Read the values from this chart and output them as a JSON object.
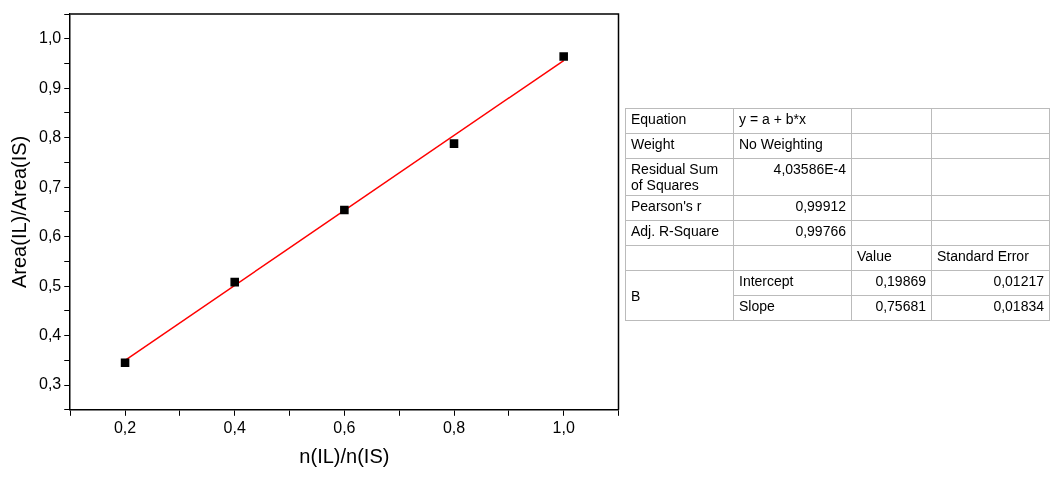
{
  "chart_data": {
    "type": "scatter",
    "xlabel": "n(IL)/n(IS)",
    "ylabel": "Area(IL)/Area(IS)",
    "xlim": [
      0.1,
      1.1
    ],
    "ylim": [
      0.25,
      1.05
    ],
    "xticks": [
      {
        "value": 0.1,
        "label": null
      },
      {
        "value": 0.2,
        "label": "0,2"
      },
      {
        "value": 0.3,
        "label": null
      },
      {
        "value": 0.4,
        "label": "0,4"
      },
      {
        "value": 0.5,
        "label": null
      },
      {
        "value": 0.6,
        "label": "0,6"
      },
      {
        "value": 0.7,
        "label": null
      },
      {
        "value": 0.8,
        "label": "0,8"
      },
      {
        "value": 0.9,
        "label": null
      },
      {
        "value": 1.0,
        "label": "1,0"
      },
      {
        "value": 1.1,
        "label": null
      }
    ],
    "yticks": [
      {
        "value": 0.25,
        "label": null
      },
      {
        "value": 0.3,
        "label": "0,3"
      },
      {
        "value": 0.35,
        "label": null
      },
      {
        "value": 0.4,
        "label": "0,4"
      },
      {
        "value": 0.45,
        "label": null
      },
      {
        "value": 0.5,
        "label": "0,5"
      },
      {
        "value": 0.55,
        "label": null
      },
      {
        "value": 0.6,
        "label": "0,6"
      },
      {
        "value": 0.65,
        "label": null
      },
      {
        "value": 0.7,
        "label": "0,7"
      },
      {
        "value": 0.75,
        "label": null
      },
      {
        "value": 0.8,
        "label": "0,8"
      },
      {
        "value": 0.85,
        "label": null
      },
      {
        "value": 0.9,
        "label": "0,9"
      },
      {
        "value": 0.95,
        "label": null
      },
      {
        "value": 1.0,
        "label": "1,0"
      },
      {
        "value": 1.05,
        "label": null
      }
    ],
    "marker": "square",
    "grid": false,
    "legend": false,
    "series": [
      {
        "type": "scatter",
        "color": "#000000",
        "x": [
          0.2,
          0.4,
          0.6,
          0.8,
          1.0
        ],
        "values": [
          0.345,
          0.508,
          0.654,
          0.788,
          0.964
        ]
      },
      {
        "type": "line",
        "color": "#ff0000",
        "marker": "none",
        "x": [
          0.2,
          1.0
        ],
        "values": [
          0.35,
          0.956
        ]
      }
    ],
    "annotations": [
      "Equation",
      "y = a + b*x",
      "Weight",
      "No Weighting",
      "Residual Sum of Squares",
      "4,03586E-4",
      "Pearson's r",
      "0,99912",
      "Adj. R-Square",
      "0,99766",
      "Value",
      "Standard Error",
      "B",
      "Intercept",
      "0,19869",
      "0,01217",
      "Slope",
      "0,75681",
      "0,01834"
    ]
  }
}
